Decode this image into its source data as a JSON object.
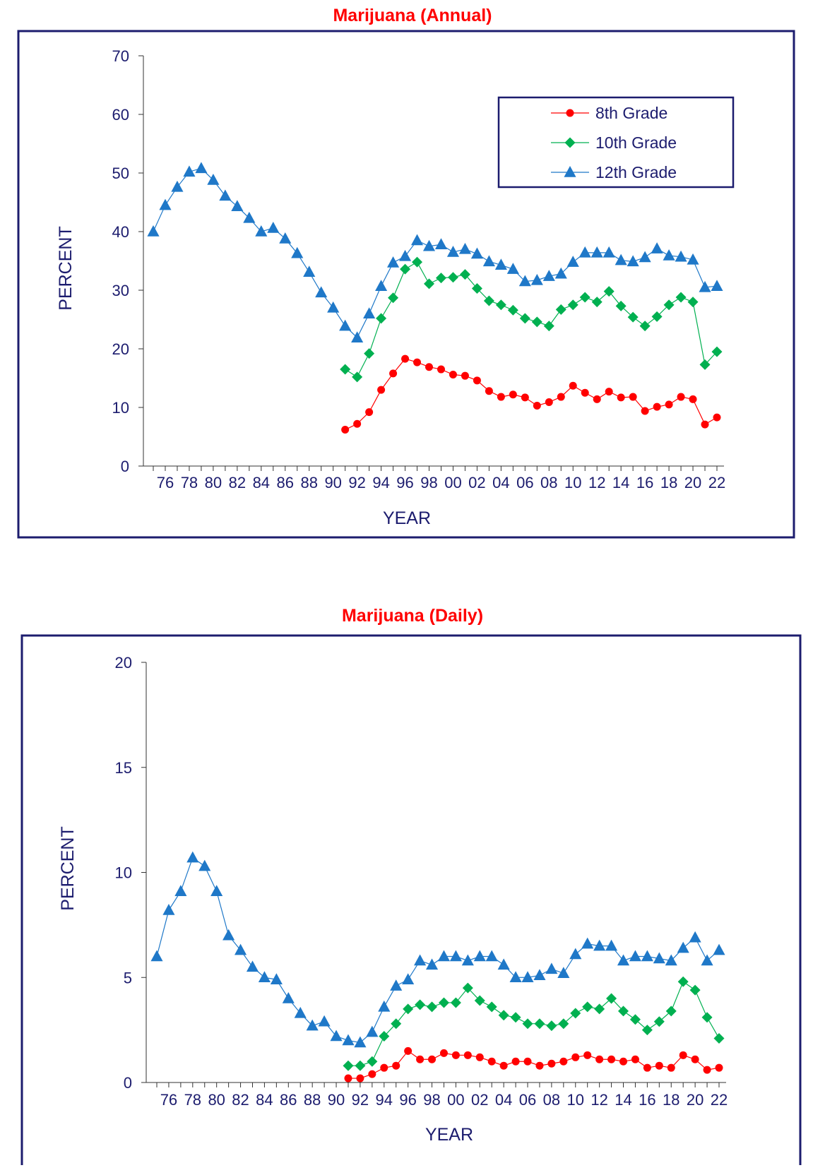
{
  "chart_data": [
    {
      "type": "line",
      "title": "Marijuana (Annual)",
      "xlabel": "YEAR",
      "ylabel": "PERCENT",
      "ylim": [
        0,
        70
      ],
      "yticks": [
        "0",
        "10",
        "20",
        "30",
        "40",
        "50",
        "60",
        "70"
      ],
      "xtick_labels": [
        "76",
        "78",
        "80",
        "82",
        "84",
        "86",
        "88",
        "90",
        "92",
        "94",
        "96",
        "98",
        "00",
        "02",
        "04",
        "06",
        "08",
        "10",
        "12",
        "14",
        "16",
        "18",
        "20",
        "22"
      ],
      "legend_position": "top-right",
      "series": [
        {
          "name": "8th Grade",
          "color": "#ff0000",
          "marker": "circle",
          "x": [
            1991,
            1992,
            1993,
            1994,
            1995,
            1996,
            1997,
            1998,
            1999,
            2000,
            2001,
            2002,
            2003,
            2004,
            2005,
            2006,
            2007,
            2008,
            2009,
            2010,
            2011,
            2012,
            2013,
            2014,
            2015,
            2016,
            2017,
            2018,
            2019,
            2020,
            2021,
            2022
          ],
          "values": [
            6.2,
            7.2,
            9.2,
            13.0,
            15.8,
            18.3,
            17.7,
            16.9,
            16.5,
            15.6,
            15.4,
            14.6,
            12.8,
            11.8,
            12.2,
            11.7,
            10.3,
            10.9,
            11.8,
            13.7,
            12.5,
            11.4,
            12.7,
            11.7,
            11.8,
            9.4,
            10.1,
            10.5,
            11.8,
            11.4,
            7.1,
            8.3
          ]
        },
        {
          "name": "10th Grade",
          "color": "#00b050",
          "marker": "diamond",
          "x": [
            1991,
            1992,
            1993,
            1994,
            1995,
            1996,
            1997,
            1998,
            1999,
            2000,
            2001,
            2002,
            2003,
            2004,
            2005,
            2006,
            2007,
            2008,
            2009,
            2010,
            2011,
            2012,
            2013,
            2014,
            2015,
            2016,
            2017,
            2018,
            2019,
            2020,
            2021,
            2022
          ],
          "values": [
            16.5,
            15.2,
            19.2,
            25.2,
            28.7,
            33.6,
            34.8,
            31.1,
            32.1,
            32.2,
            32.7,
            30.3,
            28.2,
            27.5,
            26.6,
            25.2,
            24.6,
            23.9,
            26.7,
            27.5,
            28.8,
            28.0,
            29.8,
            27.3,
            25.4,
            23.9,
            25.5,
            27.5,
            28.8,
            28.0,
            17.3,
            19.5
          ]
        },
        {
          "name": "12th Grade",
          "color": "#1f78c8",
          "marker": "triangle",
          "x": [
            1975,
            1976,
            1977,
            1978,
            1979,
            1980,
            1981,
            1982,
            1983,
            1984,
            1985,
            1986,
            1987,
            1988,
            1989,
            1990,
            1991,
            1992,
            1993,
            1994,
            1995,
            1996,
            1997,
            1998,
            1999,
            2000,
            2001,
            2002,
            2003,
            2004,
            2005,
            2006,
            2007,
            2008,
            2009,
            2010,
            2011,
            2012,
            2013,
            2014,
            2015,
            2016,
            2017,
            2018,
            2019,
            2020,
            2021,
            2022
          ],
          "values": [
            40.0,
            44.5,
            47.6,
            50.2,
            50.8,
            48.8,
            46.1,
            44.3,
            42.3,
            40.0,
            40.6,
            38.8,
            36.3,
            33.1,
            29.6,
            27.0,
            23.9,
            21.9,
            26.0,
            30.7,
            34.7,
            35.8,
            38.5,
            37.5,
            37.8,
            36.5,
            37.0,
            36.2,
            34.9,
            34.3,
            33.6,
            31.5,
            31.7,
            32.4,
            32.8,
            34.8,
            36.4,
            36.4,
            36.4,
            35.1,
            34.9,
            35.6,
            37.1,
            35.9,
            35.7,
            35.2,
            30.5,
            30.7
          ]
        }
      ]
    },
    {
      "type": "line",
      "title": "Marijuana (Daily)",
      "xlabel": "YEAR",
      "ylabel": "PERCENT",
      "ylim": [
        0,
        20
      ],
      "yticks": [
        "0",
        "5",
        "10",
        "15",
        "20"
      ],
      "xtick_labels": [
        "76",
        "78",
        "80",
        "82",
        "84",
        "86",
        "88",
        "90",
        "92",
        "94",
        "96",
        "98",
        "00",
        "02",
        "04",
        "06",
        "08",
        "10",
        "12",
        "14",
        "16",
        "18",
        "20",
        "22"
      ],
      "series": [
        {
          "name": "8th Grade",
          "color": "#ff0000",
          "marker": "circle",
          "x": [
            1991,
            1992,
            1993,
            1994,
            1995,
            1996,
            1997,
            1998,
            1999,
            2000,
            2001,
            2002,
            2003,
            2004,
            2005,
            2006,
            2007,
            2008,
            2009,
            2010,
            2011,
            2012,
            2013,
            2014,
            2015,
            2016,
            2017,
            2018,
            2019,
            2020,
            2021,
            2022
          ],
          "values": [
            0.2,
            0.2,
            0.4,
            0.7,
            0.8,
            1.5,
            1.1,
            1.1,
            1.4,
            1.3,
            1.3,
            1.2,
            1.0,
            0.8,
            1.0,
            1.0,
            0.8,
            0.9,
            1.0,
            1.2,
            1.3,
            1.1,
            1.1,
            1.0,
            1.1,
            0.7,
            0.8,
            0.7,
            1.3,
            1.1,
            0.6,
            0.7
          ]
        },
        {
          "name": "10th Grade",
          "color": "#00b050",
          "marker": "diamond",
          "x": [
            1991,
            1992,
            1993,
            1994,
            1995,
            1996,
            1997,
            1998,
            1999,
            2000,
            2001,
            2002,
            2003,
            2004,
            2005,
            2006,
            2007,
            2008,
            2009,
            2010,
            2011,
            2012,
            2013,
            2014,
            2015,
            2016,
            2017,
            2018,
            2019,
            2020,
            2021,
            2022
          ],
          "values": [
            0.8,
            0.8,
            1.0,
            2.2,
            2.8,
            3.5,
            3.7,
            3.6,
            3.8,
            3.8,
            4.5,
            3.9,
            3.6,
            3.2,
            3.1,
            2.8,
            2.8,
            2.7,
            2.8,
            3.3,
            3.6,
            3.5,
            4.0,
            3.4,
            3.0,
            2.5,
            2.9,
            3.4,
            4.8,
            4.4,
            3.1,
            2.1
          ]
        },
        {
          "name": "12th Grade",
          "color": "#1f78c8",
          "marker": "triangle",
          "x": [
            1975,
            1976,
            1977,
            1978,
            1979,
            1980,
            1981,
            1982,
            1983,
            1984,
            1985,
            1986,
            1987,
            1988,
            1989,
            1990,
            1991,
            1992,
            1993,
            1994,
            1995,
            1996,
            1997,
            1998,
            1999,
            2000,
            2001,
            2002,
            2003,
            2004,
            2005,
            2006,
            2007,
            2008,
            2009,
            2010,
            2011,
            2012,
            2013,
            2014,
            2015,
            2016,
            2017,
            2018,
            2019,
            2020,
            2021,
            2022
          ],
          "values": [
            6.0,
            8.2,
            9.1,
            10.7,
            10.3,
            9.1,
            7.0,
            6.3,
            5.5,
            5.0,
            4.9,
            4.0,
            3.3,
            2.7,
            2.9,
            2.2,
            2.0,
            1.9,
            2.4,
            3.6,
            4.6,
            4.9,
            5.8,
            5.6,
            6.0,
            6.0,
            5.8,
            6.0,
            6.0,
            5.6,
            5.0,
            5.0,
            5.1,
            5.4,
            5.2,
            6.1,
            6.6,
            6.5,
            6.5,
            5.8,
            6.0,
            6.0,
            5.9,
            5.8,
            6.4,
            6.9,
            5.8,
            6.3
          ]
        }
      ]
    }
  ]
}
